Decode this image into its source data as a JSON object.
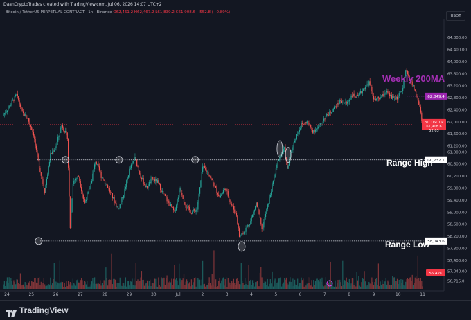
{
  "header": {
    "text": "DaanCryptoTrades created with TradingView.com, Jul 06, 2026 14:07 UTC+2"
  },
  "legend": {
    "symbol": "Bitcoin / TetherUS PERPETUAL CONTRACT · 1h · Binance",
    "open": "O62,461.2",
    "high": "H62,467.2",
    "low": "L61,839.2",
    "close": "C61,908.6",
    "change": "−552.8 (−0.89%)"
  },
  "currency_button": "USDT",
  "annotations": {
    "weekly_ma": "Weekly 200MA",
    "range_high": "Range High",
    "range_low": "Range Low"
  },
  "price_tags": {
    "ma": "62,849.4",
    "symbol_name": "BTCUSDT.P",
    "last": "61,908.6",
    "countdown": "52:03",
    "range_high": "60,737.1",
    "range_low": "58,043.6",
    "volume": "55.42K"
  },
  "branding": {
    "name": "TradingView"
  },
  "colors": {
    "background": "#131722",
    "up": "#26a69a",
    "down": "#ef5350",
    "ma_line": "#9c27b0",
    "ma_text": "#a52fb5",
    "range_line": "#d1d4dc"
  },
  "chart_data": {
    "type": "candlestick",
    "timeframe": "1h",
    "y_ticks": [
      "64,800.00",
      "64,400.00",
      "64,000.00",
      "63,600.00",
      "63,200.00",
      "62,800.00",
      "62,400.00",
      "62,000.00",
      "61,600.00",
      "61,200.00",
      "61,000.00",
      "60,600.00",
      "60,200.00",
      "59,800.00",
      "59,400.00",
      "59,000.00",
      "58,600.00",
      "58,200.00",
      "57,800.00",
      "57,400.00",
      "57,040.00",
      "56,715.0"
    ],
    "x_ticks": [
      "24",
      "25",
      "26",
      "27",
      "28",
      "29",
      "30",
      "Jul",
      "2",
      "3",
      "4",
      "5",
      "6",
      "7",
      "8",
      "9",
      "10",
      "11"
    ],
    "ylim": [
      56500,
      65400
    ],
    "close_path": [
      {
        "x": 0,
        "y": 62200
      },
      {
        "x": 3,
        "y": 62600
      },
      {
        "x": 5,
        "y": 62900
      },
      {
        "x": 7,
        "y": 62300
      },
      {
        "x": 9,
        "y": 62100
      },
      {
        "x": 11,
        "y": 61600
      },
      {
        "x": 12,
        "y": 61000
      },
      {
        "x": 13.5,
        "y": 60300
      },
      {
        "x": 15,
        "y": 59700
      },
      {
        "x": 17,
        "y": 60900
      },
      {
        "x": 19,
        "y": 61200
      },
      {
        "x": 21,
        "y": 61900
      },
      {
        "x": 23,
        "y": 61500
      },
      {
        "x": 24,
        "y": 58500
      },
      {
        "x": 25,
        "y": 60000
      },
      {
        "x": 27,
        "y": 60200
      },
      {
        "x": 29,
        "y": 59300
      },
      {
        "x": 31,
        "y": 59800
      },
      {
        "x": 33,
        "y": 60700
      },
      {
        "x": 35,
        "y": 60200
      },
      {
        "x": 37,
        "y": 59900
      },
      {
        "x": 39,
        "y": 59500
      },
      {
        "x": 41,
        "y": 59100
      },
      {
        "x": 43,
        "y": 59600
      },
      {
        "x": 45,
        "y": 60400
      },
      {
        "x": 47,
        "y": 60800
      },
      {
        "x": 49,
        "y": 60200
      },
      {
        "x": 51,
        "y": 59800
      },
      {
        "x": 53,
        "y": 60100
      },
      {
        "x": 55,
        "y": 60000
      },
      {
        "x": 57,
        "y": 59600
      },
      {
        "x": 59,
        "y": 59300
      },
      {
        "x": 61,
        "y": 59000
      },
      {
        "x": 63,
        "y": 59800
      },
      {
        "x": 65,
        "y": 59200
      },
      {
        "x": 67,
        "y": 59000
      },
      {
        "x": 69,
        "y": 59100
      },
      {
        "x": 71,
        "y": 60500
      },
      {
        "x": 73,
        "y": 60300
      },
      {
        "x": 75,
        "y": 59900
      },
      {
        "x": 77,
        "y": 59500
      },
      {
        "x": 79,
        "y": 59800
      },
      {
        "x": 81,
        "y": 59300
      },
      {
        "x": 83,
        "y": 58900
      },
      {
        "x": 84,
        "y": 58200
      },
      {
        "x": 86,
        "y": 58400
      },
      {
        "x": 88,
        "y": 58700
      },
      {
        "x": 90,
        "y": 59300
      },
      {
        "x": 91,
        "y": 58900
      },
      {
        "x": 92,
        "y": 58400
      },
      {
        "x": 94,
        "y": 59200
      },
      {
        "x": 96,
        "y": 60000
      },
      {
        "x": 98,
        "y": 60800
      },
      {
        "x": 100,
        "y": 61100
      },
      {
        "x": 101,
        "y": 60400
      },
      {
        "x": 102,
        "y": 60900
      },
      {
        "x": 104,
        "y": 61500
      },
      {
        "x": 106,
        "y": 61900
      },
      {
        "x": 108,
        "y": 62000
      },
      {
        "x": 110,
        "y": 61700
      },
      {
        "x": 112,
        "y": 61800
      },
      {
        "x": 114,
        "y": 62100
      },
      {
        "x": 116,
        "y": 62300
      },
      {
        "x": 118,
        "y": 62500
      },
      {
        "x": 120,
        "y": 62700
      },
      {
        "x": 122,
        "y": 62600
      },
      {
        "x": 124,
        "y": 62900
      },
      {
        "x": 126,
        "y": 62800
      },
      {
        "x": 128,
        "y": 63100
      },
      {
        "x": 130,
        "y": 63300
      },
      {
        "x": 132,
        "y": 62700
      },
      {
        "x": 134,
        "y": 62800
      },
      {
        "x": 136,
        "y": 63000
      },
      {
        "x": 138,
        "y": 62800
      },
      {
        "x": 140,
        "y": 62800
      },
      {
        "x": 142,
        "y": 63100
      },
      {
        "x": 143,
        "y": 63700
      },
      {
        "x": 144,
        "y": 63500
      },
      {
        "x": 145,
        "y": 63300
      },
      {
        "x": 146,
        "y": 63100
      },
      {
        "x": 147,
        "y": 62800
      },
      {
        "x": 148,
        "y": 62500
      },
      {
        "x": 149,
        "y": 61900
      }
    ],
    "levels": {
      "weekly_200ma": 62849.4,
      "range_high": 60737.1,
      "range_low": 58043.6
    },
    "last_price": 61908.6
  }
}
